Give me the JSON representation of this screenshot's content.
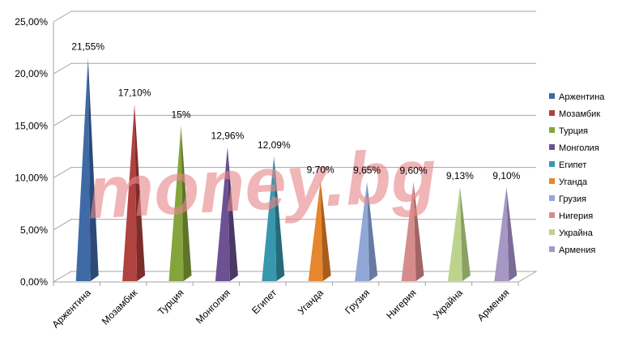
{
  "watermark": "money.bg",
  "chart_data": {
    "type": "bar",
    "style": "3d-pyramid",
    "title": "",
    "xlabel": "",
    "ylabel": "",
    "ylim": [
      0,
      25
    ],
    "yticks": [
      0,
      5,
      10,
      15,
      20,
      25
    ],
    "ytick_labels": [
      "0,00%",
      "5,00%",
      "10,00%",
      "15,00%",
      "20,00%",
      "25,00%"
    ],
    "grid": true,
    "legend_position": "right",
    "categories": [
      "Аржентина",
      "Мозамбик",
      "Турция",
      "Монголия",
      "Египет",
      "Уганда",
      "Грузия",
      "Нигерия",
      "Украйна",
      "Армения"
    ],
    "values": [
      21.55,
      17.1,
      15,
      12.96,
      12.09,
      9.7,
      9.65,
      9.6,
      9.13,
      9.1
    ],
    "data_labels": [
      "21,55%",
      "17,10%",
      "15%",
      "12,96%",
      "12,09%",
      "9,70%",
      "9,65%",
      "9,60%",
      "9,13%",
      "9,10%"
    ],
    "colors": [
      "#3f6aa6",
      "#b0423f",
      "#86a43c",
      "#6c5193",
      "#3797ac",
      "#e6862d",
      "#91a8d6",
      "#d68c8c",
      "#bcd38e",
      "#a797c5"
    ],
    "side_colors": [
      "#2b4a78",
      "#7c2d2b",
      "#5e7429",
      "#4b3866",
      "#256a7a",
      "#a85d1c",
      "#667aa3",
      "#a26464",
      "#8aa064",
      "#7a6c96"
    ]
  }
}
